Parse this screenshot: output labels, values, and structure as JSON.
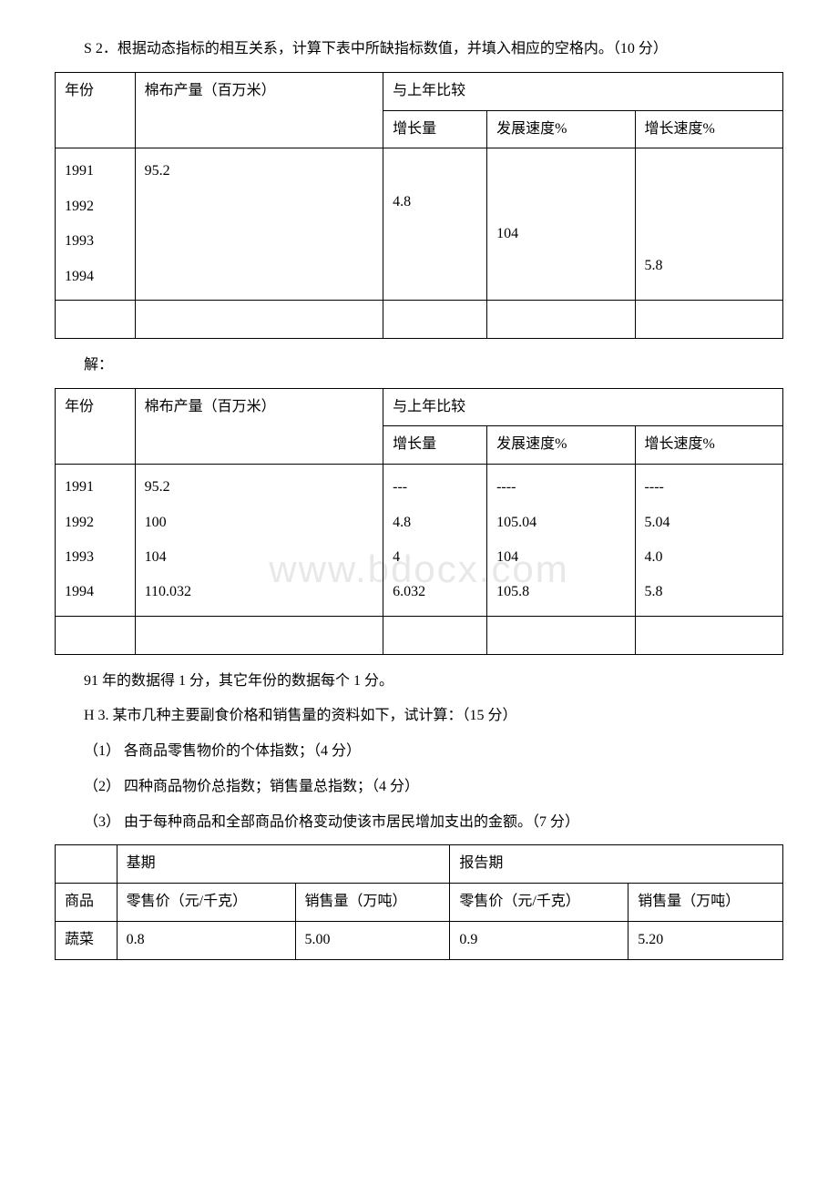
{
  "q2": {
    "prompt": "S 2．根据动态指标的相互关系，计算下表中所缺指标数值，并填入相应的空格内。（10 分）",
    "table1": {
      "header": {
        "year": "年份",
        "output": "棉布产量（百万米）",
        "compare": "与上年比较",
        "growth": "增长量",
        "devRate": "发展速度%",
        "growthRate": "增长速度%"
      },
      "years": "1991\n1992\n1993\n1994",
      "output": "95.2",
      "growth": "4.8",
      "devRate": "104",
      "growthRate": "5.8"
    },
    "solution_label": "解：",
    "table2": {
      "header": {
        "year": "年份",
        "output": "棉布产量（百万米）",
        "compare": "与上年比较",
        "growth": "增长量",
        "devRate": "发展速度%",
        "growthRate": "增长速度%"
      },
      "years": "1991\n1992\n1993\n1994",
      "output": "95.2\n100\n104\n110.032",
      "growth": "---\n4.8\n4\n6.032",
      "devRate": "----\n105.04\n104\n105.8",
      "growthRate": "----\n5.04\n4.0\n5.8"
    },
    "note": "91 年的数据得 1 分，其它年份的数据每个 1 分。"
  },
  "q3": {
    "prompt": "H 3. 某市几种主要副食价格和销售量的资料如下，试计算：（15 分）",
    "item1": "（1） 各商品零售物价的个体指数；（4 分）",
    "item2": "（2） 四种商品物价总指数；销售量总指数；（4 分）",
    "item3": "（3） 由于每种商品和全部商品价格变动使该市居民增加支出的金额。（7 分）",
    "table": {
      "header": {
        "base": "基期",
        "report": "报告期",
        "product": "商品",
        "retailPrice": "零售价（元/千克）",
        "salesVol": "销售量（万吨）",
        "retailPrice2": "零售价（元/千克）",
        "salesVol2": "销售量（万吨）"
      },
      "row1": {
        "product": "蔬菜",
        "basePrice": "0.8",
        "baseVol": "5.00",
        "reportPrice": "0.9",
        "reportVol": "5.20"
      }
    }
  },
  "watermark": "www.bdocx.com"
}
